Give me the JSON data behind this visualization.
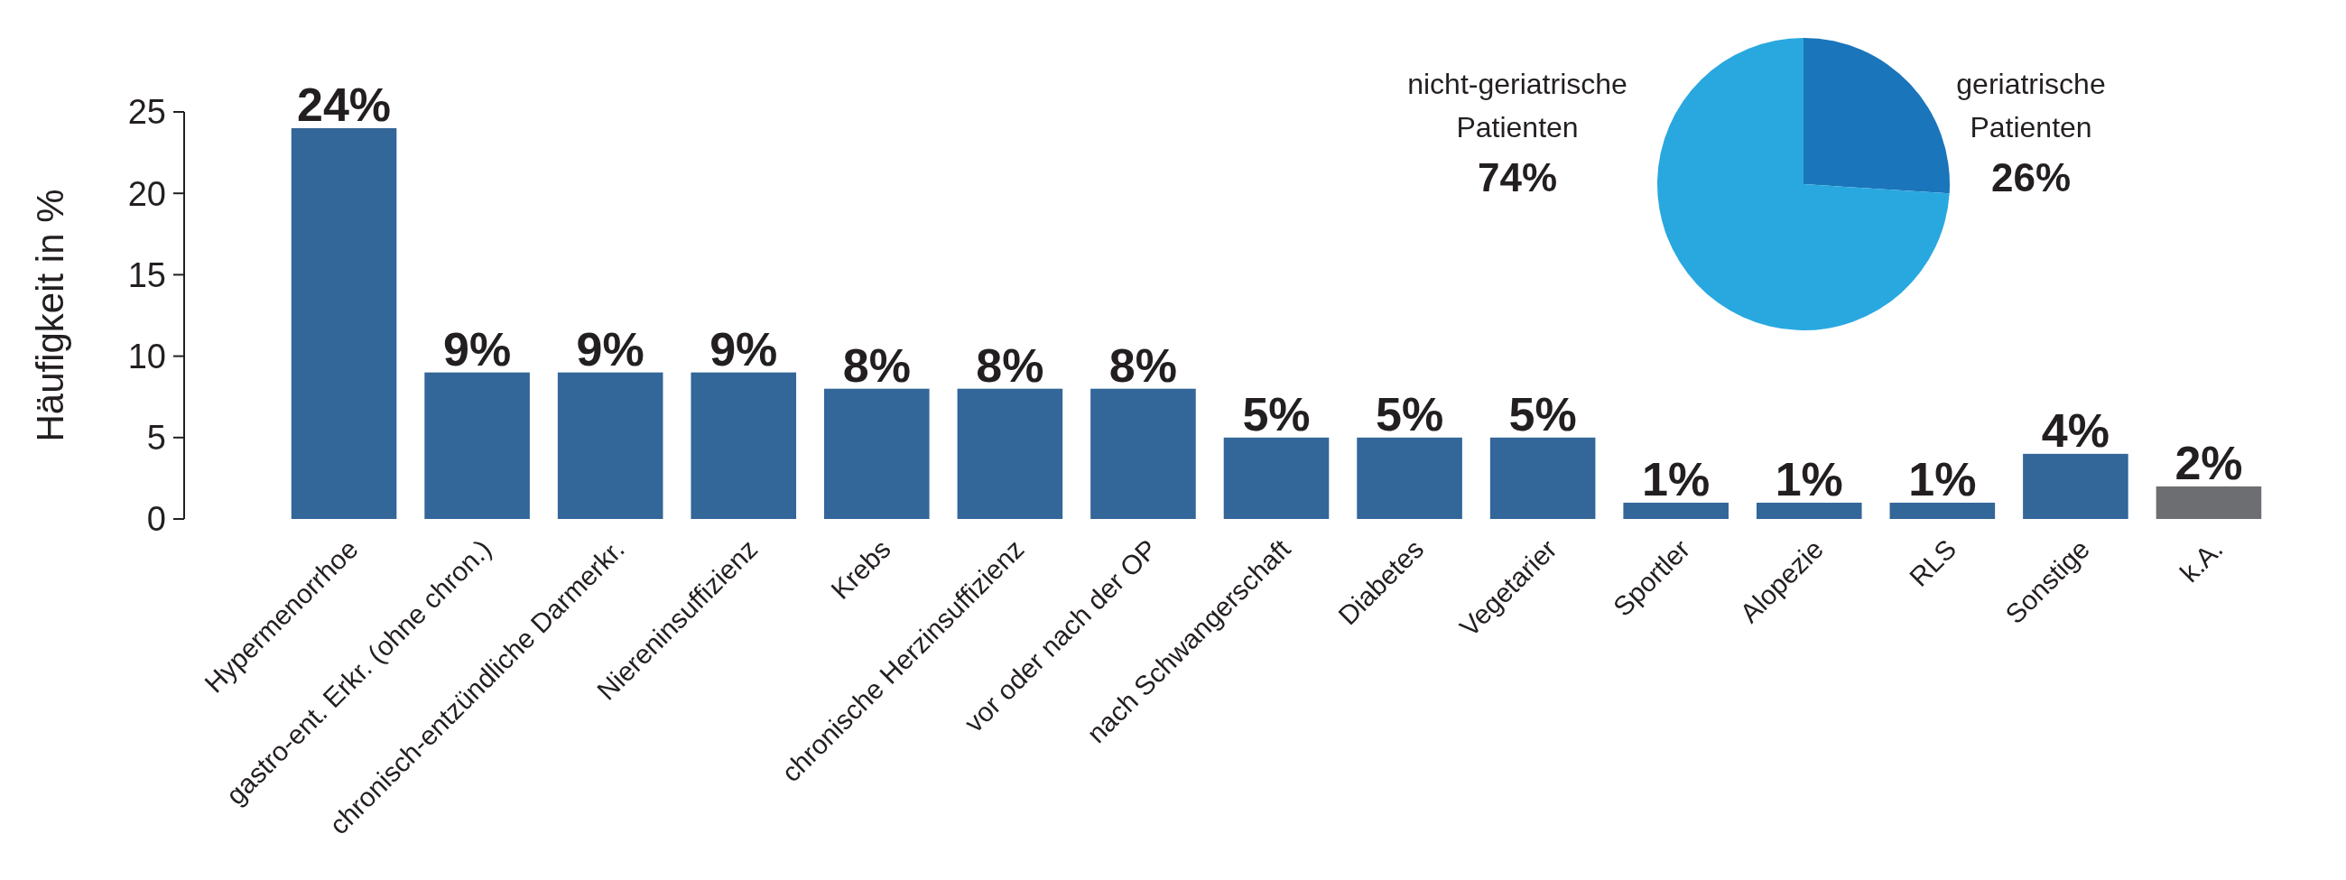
{
  "chart_data": [
    {
      "type": "bar",
      "ylabel": "Häufigkeit in %",
      "categories": [
        "Hypermenorrhoe",
        "gastro-ent. Erkr. (ohne chron.)",
        "chronisch-entzündliche Darmerkr.",
        "Niereninsuffizienz",
        "Krebs",
        "chronische Herzinsuffizienz",
        "vor oder nach der OP",
        "nach Schwangerschaft",
        "Diabetes",
        "Vegetarier",
        "Sportler",
        "Alopezie",
        "RLS",
        "Sonstige",
        "k.A."
      ],
      "values": [
        24,
        9,
        9,
        9,
        8,
        8,
        8,
        5,
        5,
        5,
        1,
        1,
        1,
        4,
        2
      ],
      "colors": [
        "#336699",
        "#336699",
        "#336699",
        "#336699",
        "#336699",
        "#336699",
        "#336699",
        "#336699",
        "#336699",
        "#336699",
        "#336699",
        "#336699",
        "#336699",
        "#336699",
        "#6d6e71"
      ],
      "value_labels": [
        "24%",
        "9%",
        "9%",
        "9%",
        "8%",
        "8%",
        "8%",
        "5%",
        "5%",
        "5%",
        "1%",
        "1%",
        "1%",
        "4%",
        "2%"
      ],
      "ylim": [
        0,
        25
      ],
      "yticks": [
        0,
        5,
        10,
        15,
        20,
        25
      ],
      "grid": false
    },
    {
      "type": "pie",
      "categories": [
        "geriatrische Patienten",
        "nicht-geriatrische Patienten"
      ],
      "values": [
        26,
        74
      ],
      "colors": [
        "#1a75bb",
        "#29a8e0"
      ],
      "value_labels": [
        "26%",
        "74%"
      ]
    }
  ]
}
